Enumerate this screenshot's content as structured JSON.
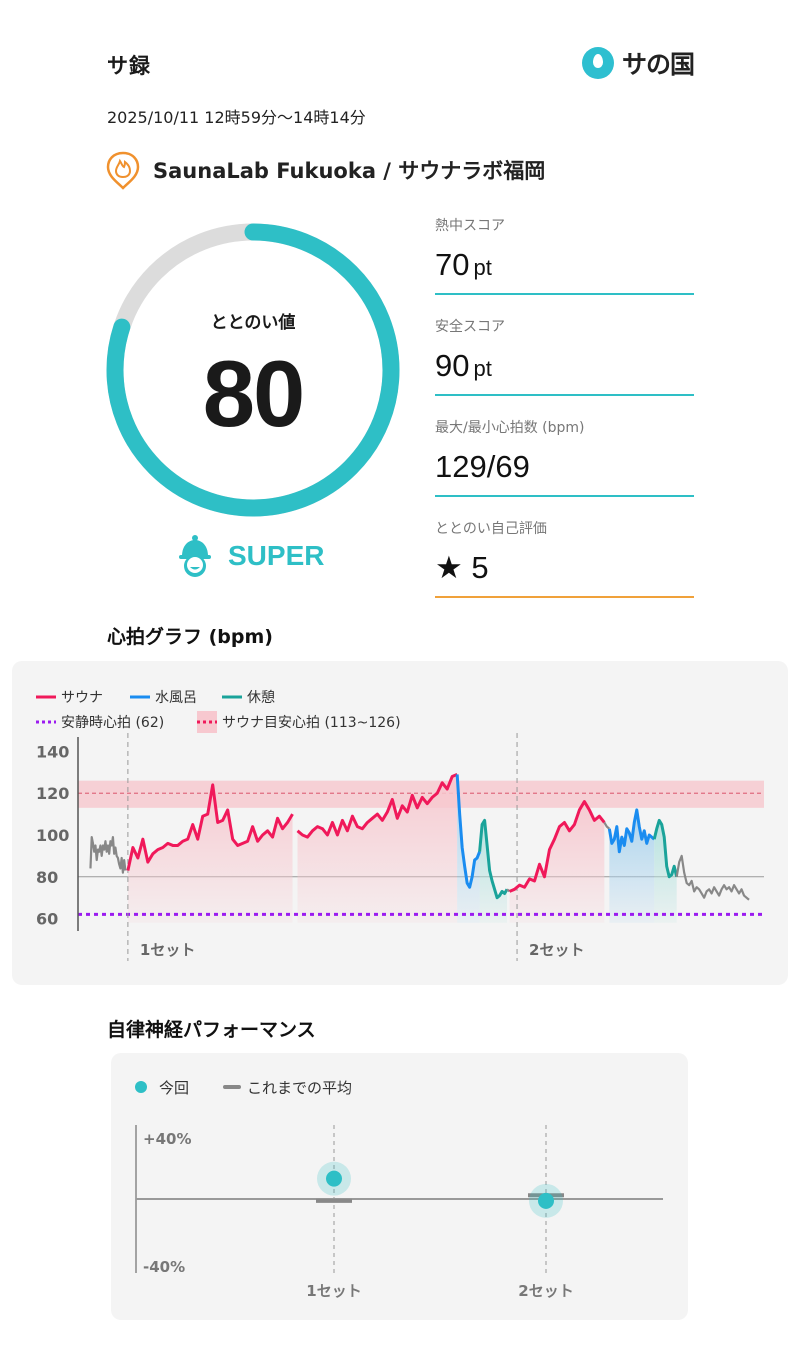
{
  "header": {
    "title": "サ録",
    "logo_text": "サの国"
  },
  "session": {
    "datetime": "2025/10/11 12時59分〜14時14分",
    "facility": "SaunaLab Fukuoka / サウナラボ福岡"
  },
  "totonoi": {
    "label": "ととのい値",
    "value": "80",
    "progress": 0.8,
    "rank": "SUPER"
  },
  "stats": [
    {
      "label": "熱中スコア",
      "value": "70",
      "unit": "pt"
    },
    {
      "label": "安全スコア",
      "value": "90",
      "unit": "pt"
    },
    {
      "label": "最大/最小心拍数 (bpm)",
      "value": "129/69",
      "unit": ""
    },
    {
      "label": "ととのい自己評価",
      "value": "★ 5",
      "unit": ""
    }
  ],
  "hr_section": {
    "title": "心拍グラフ (bpm)"
  },
  "anp_section": {
    "title": "自律神経パフォーマンス"
  },
  "colors": {
    "accent": "#2ebfc6",
    "sauna": "#f0195a",
    "water": "#1a8cf0",
    "rest": "#1aa39a",
    "resting_hr": "#9b1bf0",
    "sauna_band": "#f1a0a8",
    "orange": "#f0a13a",
    "idle": "#888888"
  },
  "chart_data": [
    {
      "type": "line",
      "title": "心拍グラフ (bpm)",
      "legend": [
        {
          "name": "サウナ",
          "color": "#f0195a"
        },
        {
          "name": "水風呂",
          "color": "#1a8cf0"
        },
        {
          "name": "休憩",
          "color": "#1aa39a"
        },
        {
          "name": "安静時心拍 (62)",
          "color": "#9b1bf0",
          "dashed": true
        },
        {
          "name": "サウナ目安心拍 (113~126)",
          "color": "#f1a0a8",
          "dashed": true
        }
      ],
      "y_ticks": [
        "140",
        "120",
        "100",
        "80",
        "60"
      ],
      "ylim": [
        55,
        145
      ],
      "resting_hr": 62,
      "target_band": [
        113,
        126
      ],
      "target_center": 120,
      "set_labels": [
        "1セット",
        "2セット"
      ],
      "series": [
        {
          "phase": "idle",
          "t": [
            0,
            1,
            2,
            3,
            4,
            5,
            6,
            7,
            8,
            9,
            10,
            11,
            12,
            13,
            14,
            15,
            16,
            17,
            18,
            19,
            20,
            21,
            22,
            23,
            24,
            25,
            26,
            27,
            28
          ],
          "hr": [
            84,
            99,
            96,
            92,
            95,
            88,
            93,
            92,
            95,
            90,
            95,
            93,
            97,
            92,
            95,
            91,
            97,
            95,
            99,
            91,
            94,
            90,
            89,
            86,
            84,
            89,
            82,
            88,
            83
          ]
        },
        {
          "phase": "sauna",
          "t": [
            30,
            34,
            38,
            42,
            46,
            50,
            54,
            58,
            62,
            66,
            70,
            74,
            78,
            82,
            86,
            90,
            94,
            98,
            102,
            106,
            110,
            114,
            118,
            122,
            126,
            130,
            134,
            138,
            142,
            146,
            150,
            154,
            158,
            162
          ],
          "hr": [
            83,
            94,
            89,
            98,
            87,
            91,
            93,
            94,
            96,
            95,
            95,
            97,
            98,
            105,
            98,
            109,
            110,
            124,
            106,
            107,
            112,
            98,
            95,
            96,
            97,
            104,
            97,
            100,
            102,
            99,
            108,
            103,
            106,
            110
          ]
        },
        {
          "phase": "sauna",
          "t": [
            166,
            170,
            174,
            178,
            182,
            186,
            190,
            194,
            198,
            202,
            206,
            210,
            214,
            218,
            222,
            226,
            230,
            234,
            238,
            242,
            246,
            250,
            254,
            258,
            262,
            266,
            270,
            274,
            278,
            282,
            286,
            290,
            294
          ],
          "hr": [
            102,
            100,
            99,
            102,
            104,
            103,
            100,
            106,
            100,
            107,
            102,
            109,
            104,
            103,
            106,
            108,
            110,
            107,
            111,
            117,
            108,
            114,
            111,
            119,
            113,
            118,
            115,
            118,
            120,
            125,
            122,
            128,
            129
          ]
        },
        {
          "phase": "water",
          "t": [
            294,
            296,
            298,
            300,
            302,
            304,
            306,
            308,
            310,
            312
          ],
          "hr": [
            129,
            110,
            94,
            85,
            77,
            75,
            80,
            88,
            89,
            92
          ]
        },
        {
          "phase": "rest",
          "t": [
            312,
            314,
            316,
            318,
            320,
            322,
            324,
            326,
            328,
            330,
            332,
            334
          ],
          "hr": [
            92,
            105,
            107,
            95,
            83,
            78,
            74,
            70,
            71,
            73,
            72,
            74
          ]
        },
        {
          "phase": "idle",
          "t": [
            334,
            336
          ],
          "hr": [
            74,
            73
          ]
        },
        {
          "phase": "sauna",
          "t": [
            336,
            340,
            344,
            348,
            352,
            356,
            360,
            364,
            368,
            372,
            376,
            380,
            384,
            388,
            392,
            396,
            400,
            404,
            408,
            412
          ],
          "hr": [
            73,
            74,
            76,
            75,
            79,
            78,
            86,
            80,
            93,
            98,
            104,
            106,
            102,
            105,
            112,
            116,
            112,
            107,
            109,
            106
          ]
        },
        {
          "phase": "idle",
          "t": [
            412,
            414,
            416
          ],
          "hr": [
            106,
            104,
            103
          ]
        },
        {
          "phase": "water",
          "t": [
            416,
            418,
            420,
            422,
            424,
            426,
            428,
            430,
            432,
            434,
            436,
            438,
            440,
            442,
            444,
            446,
            448,
            450,
            452
          ],
          "hr": [
            103,
            96,
            98,
            104,
            92,
            99,
            95,
            103,
            101,
            97,
            106,
            112,
            104,
            98,
            102,
            96,
            100,
            99,
            98
          ]
        },
        {
          "phase": "rest",
          "t": [
            452,
            454,
            456,
            458,
            460,
            462,
            464,
            466,
            468,
            470
          ],
          "hr": [
            98,
            103,
            107,
            105,
            99,
            85,
            80,
            81,
            85,
            80
          ]
        },
        {
          "phase": "idle",
          "t": [
            470,
            472,
            474,
            476,
            478,
            480,
            482,
            484,
            486,
            488,
            490,
            492,
            494,
            496,
            498,
            500,
            502,
            504,
            506,
            508,
            510,
            512,
            514,
            516,
            518,
            520,
            522,
            524,
            526,
            528
          ],
          "hr": [
            80,
            87,
            90,
            82,
            77,
            76,
            78,
            73,
            75,
            74,
            72,
            70,
            73,
            74,
            72,
            75,
            73,
            71,
            74,
            76,
            74,
            75,
            73,
            76,
            74,
            72,
            74,
            71,
            70,
            69
          ]
        }
      ],
      "shaded_ranges": [
        {
          "phase": "sauna",
          "t": [
            30,
            162
          ]
        },
        {
          "phase": "sauna",
          "t": [
            166,
            294
          ]
        },
        {
          "phase": "water",
          "t": [
            294,
            312
          ]
        },
        {
          "phase": "rest",
          "t": [
            312,
            334
          ]
        },
        {
          "phase": "sauna",
          "t": [
            336,
            412
          ]
        },
        {
          "phase": "water",
          "t": [
            416,
            452
          ]
        },
        {
          "phase": "rest",
          "t": [
            452,
            470
          ]
        }
      ],
      "set_markers": [
        30,
        342
      ],
      "xlim": [
        -10,
        540
      ]
    },
    {
      "type": "scatter",
      "title": "自律神経パフォーマンス",
      "legend": [
        {
          "name": "今回",
          "color": "#2ebfc6"
        },
        {
          "name": "これまでの平均",
          "color": "#888888"
        }
      ],
      "y_ticks": [
        "+40%",
        "-40%"
      ],
      "ylim": [
        -40,
        40
      ],
      "categories": [
        "1セット",
        "2セット"
      ],
      "current": [
        11,
        -1
      ],
      "average": [
        -1,
        2
      ]
    }
  ]
}
